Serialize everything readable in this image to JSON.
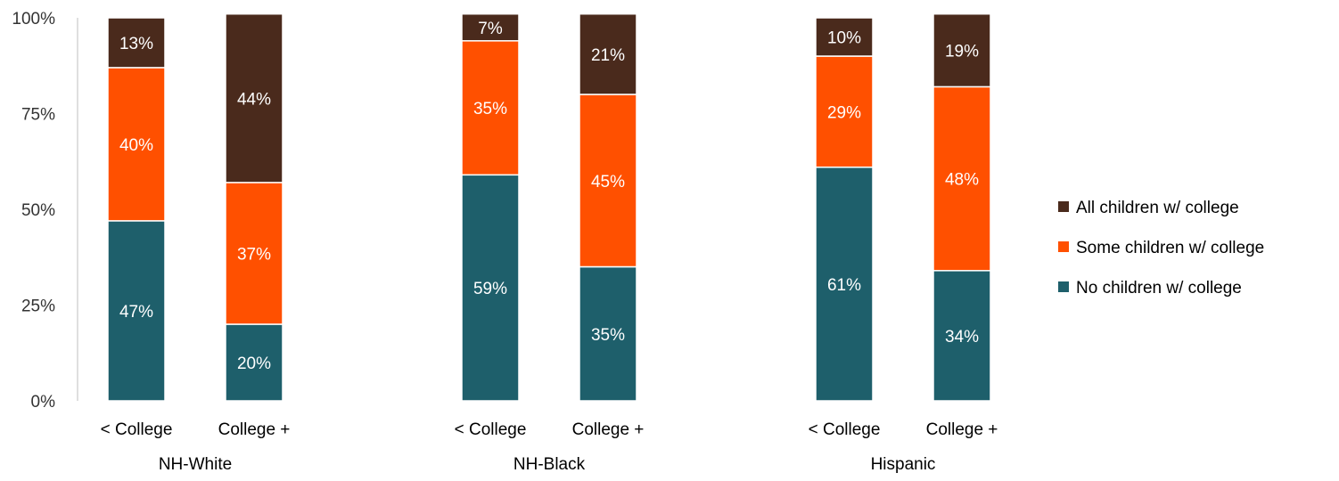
{
  "chart_data": {
    "type": "bar",
    "stacked": true,
    "groups": [
      {
        "label": "NH-White",
        "categories": [
          "< College",
          "College +"
        ]
      },
      {
        "label": "NH-Black",
        "categories": [
          "< College",
          "College +"
        ]
      },
      {
        "label": "Hispanic",
        "categories": [
          "< College",
          "College +"
        ]
      }
    ],
    "series": [
      {
        "name": "No children w/ college",
        "color": "#1e5f6b",
        "values": [
          47,
          20,
          59,
          35,
          61,
          34
        ],
        "labels": [
          "47%",
          "20%",
          "59%",
          "35%",
          "61%",
          "34%"
        ]
      },
      {
        "name": "Some children w/ college",
        "color": "#ff5000",
        "values": [
          40,
          37,
          35,
          45,
          29,
          48
        ],
        "labels": [
          "40%",
          "37%",
          "35%",
          "45%",
          "29%",
          "48%"
        ]
      },
      {
        "name": "All children w/ college",
        "color": "#4a2a1c",
        "values": [
          13,
          44,
          7,
          21,
          10,
          19
        ],
        "labels": [
          "13%",
          "44%",
          "7%",
          "21%",
          "10%",
          "19%"
        ]
      }
    ],
    "ylim": [
      0,
      100
    ],
    "yticks": [
      "0%",
      "25%",
      "50%",
      "75%",
      "100%"
    ],
    "legend_order": [
      "All children w/ college",
      "Some children w/ college",
      "No children w/ college"
    ],
    "legend_position": "right",
    "grid": false,
    "title": "",
    "xlabel": "",
    "ylabel": ""
  }
}
